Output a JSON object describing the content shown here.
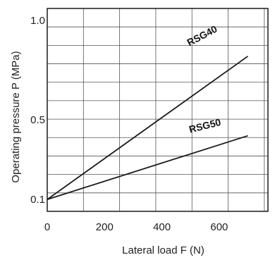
{
  "chart_data": {
    "type": "line",
    "xlabel": "Lateral load F (N)",
    "ylabel": "Operating pressure P (MPa)",
    "xlim": [
      0,
      770
    ],
    "ylim": [
      0.04,
      1.06
    ],
    "x_ticks": [
      {
        "value": 0,
        "label": "0"
      },
      {
        "value": 200,
        "label": "200"
      },
      {
        "value": 400,
        "label": "400"
      },
      {
        "value": 600,
        "label": "600"
      }
    ],
    "y_ticks": [
      {
        "value": 0.1,
        "label": "0.1"
      },
      {
        "value": 0.5,
        "label": "0.5"
      },
      {
        "value": 1.0,
        "label": "1.0"
      }
    ],
    "grid": true,
    "series": [
      {
        "name": "RSG40",
        "x": [
          0,
          700
        ],
        "y": [
          0.1,
          0.82
        ]
      },
      {
        "name": "RSG50",
        "x": [
          0,
          700
        ],
        "y": [
          0.1,
          0.42
        ]
      }
    ],
    "colors": {
      "line": "#1a1a1a",
      "grid": "#555555",
      "frame": "#1a1a1a"
    }
  }
}
